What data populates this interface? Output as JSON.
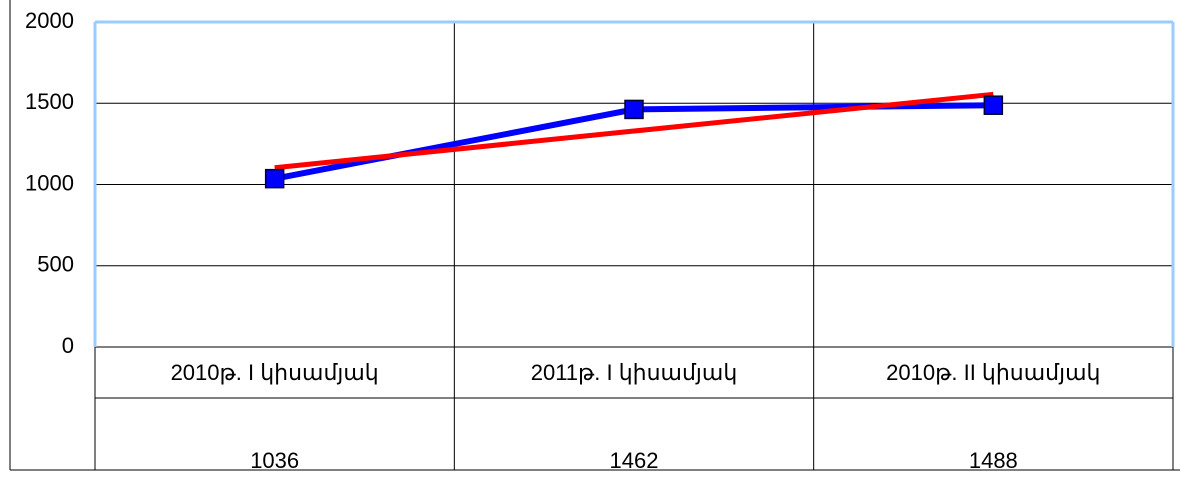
{
  "chart_data": {
    "type": "line",
    "categories": [
      "2010թ. I կիսամյակ",
      "2011թ. I կիսամյակ",
      "2010թ. II կիսամյակ"
    ],
    "series": [
      {
        "color": "#0000ff",
        "values": [
          1036,
          1462,
          1488
        ]
      },
      {
        "color": "#ff0000",
        "values": [
          1103,
          1329,
          1555
        ]
      }
    ],
    "ylim": [
      0,
      2000
    ],
    "yticks": [
      0,
      500,
      1000,
      1500,
      2000
    ],
    "grid": true
  }
}
